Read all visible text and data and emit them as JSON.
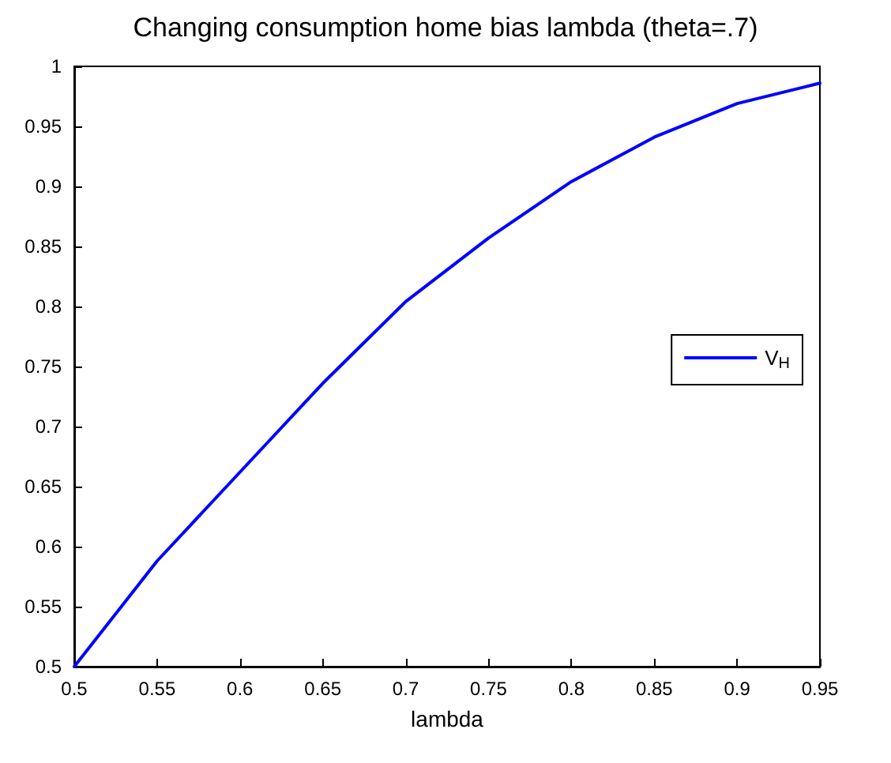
{
  "chart_data": {
    "type": "line",
    "title": "Changing consumption home bias lambda (theta=.7)",
    "xlabel": "lambda",
    "x": [
      0.5,
      0.55,
      0.6,
      0.65,
      0.7,
      0.75,
      0.8,
      0.85,
      0.9,
      0.95
    ],
    "series": [
      {
        "name": "V$_{H}$",
        "color": "#0000ff",
        "values": [
          0.5,
          0.588,
          0.662,
          0.736,
          0.804,
          0.857,
          0.904,
          0.941,
          0.969,
          0.986
        ]
      }
    ],
    "xlim": [
      0.5,
      0.95
    ],
    "xticks": [
      0.5,
      0.55,
      0.6,
      0.65,
      0.7,
      0.75,
      0.8,
      0.85,
      0.9,
      0.95
    ],
    "ylim": [
      0.5,
      1
    ],
    "yticks": [
      0.5,
      0.55,
      0.6,
      0.65,
      0.7,
      0.75,
      0.8,
      0.85,
      0.9,
      0.95,
      1
    ],
    "grid": false,
    "legend": "right",
    "marker": "none",
    "line_style": "solid"
  }
}
